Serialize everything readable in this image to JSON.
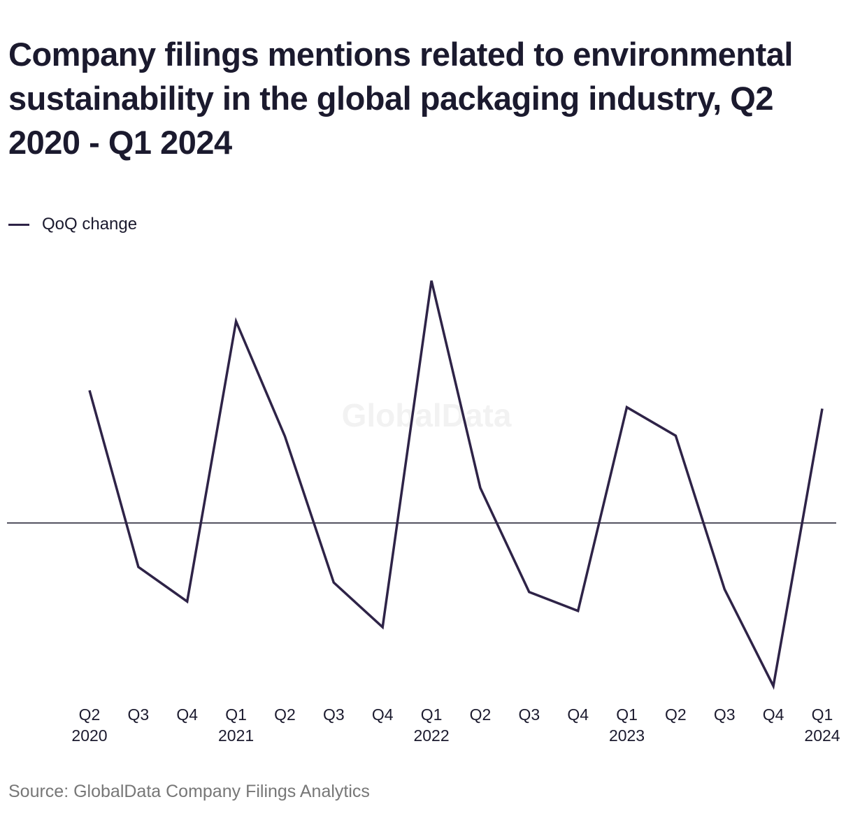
{
  "title": "Company filings mentions related to environmental sustainability in the global packaging industry, Q2 2020 - Q1 2024",
  "legend": {
    "label": "QoQ change"
  },
  "watermark": "GlobalData",
  "source": "Source: GlobalData Company Filings Analytics",
  "colors": {
    "line": "#2e2347",
    "zero_line": "#1b1a2e",
    "text": "#1b1a2e",
    "source_text": "#777777"
  },
  "chart_data": {
    "type": "line",
    "title": "Company filings mentions related to environmental sustainability in the global packaging industry, Q2 2020 - Q1 2024",
    "categories": [
      "Q2 2020",
      "Q3",
      "Q4",
      "Q1 2021",
      "Q2",
      "Q3",
      "Q4",
      "Q1 2022",
      "Q2",
      "Q3",
      "Q4",
      "Q1 2023",
      "Q2",
      "Q3",
      "Q4",
      "Q1 2024"
    ],
    "tick_labels": [
      [
        "Q2",
        "2020"
      ],
      [
        "Q3",
        ""
      ],
      [
        "Q4",
        ""
      ],
      [
        "Q1",
        "2021"
      ],
      [
        "Q2",
        ""
      ],
      [
        "Q3",
        ""
      ],
      [
        "Q4",
        ""
      ],
      [
        "Q1",
        "2022"
      ],
      [
        "Q2",
        ""
      ],
      [
        "Q3",
        ""
      ],
      [
        "Q4",
        ""
      ],
      [
        "Q1",
        "2023"
      ],
      [
        "Q2",
        ""
      ],
      [
        "Q3",
        ""
      ],
      [
        "Q4",
        ""
      ],
      [
        "Q1",
        "2024"
      ]
    ],
    "series": [
      {
        "name": "QoQ change",
        "values": [
          19.6,
          -6.5,
          -11.6,
          29.8,
          12.8,
          -8.8,
          -15.4,
          35.8,
          5.2,
          -10.2,
          -13.0,
          17.1,
          12.9,
          -9.8,
          -24.1,
          16.9
        ]
      }
    ],
    "ylim": [
      -25,
      37
    ],
    "zero_line": true,
    "grid": false,
    "y_axis_labels": false,
    "legend_position": "top-left"
  }
}
